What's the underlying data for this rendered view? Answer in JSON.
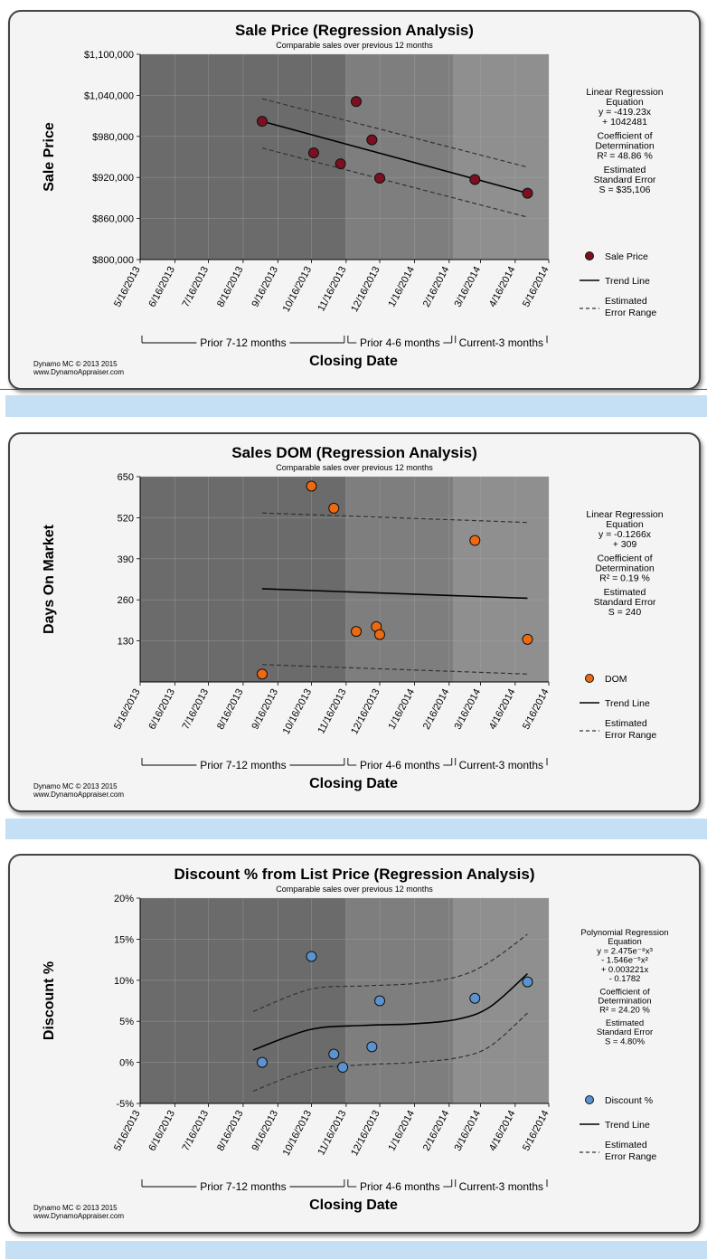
{
  "subtitle": "Comparable sales over previous 12 months",
  "xlabel": "Closing Date",
  "credit_line1": "Dynamo MC  © 2013 2015",
  "credit_line2": "www.DynamoAppraiser.com",
  "periods": [
    "Prior 7-12 months",
    "Prior 4-6 months",
    "Current-3 months"
  ],
  "x_ticks": [
    "5/16/2013",
    "6/16/2013",
    "7/16/2013",
    "8/16/2013",
    "9/16/2013",
    "10/16/2013",
    "11/16/2013",
    "12/16/2013",
    "1/16/2014",
    "2/16/2014",
    "3/16/2014",
    "4/16/2014",
    "5/16/2014"
  ],
  "legend_trend": "Trend Line",
  "legend_err1": "Estimated",
  "legend_err2": "Error Range",
  "colors": {
    "panel_bg": "#f4f4f4",
    "zone1": "#6b6b6b",
    "zone2": "#7e7e7e",
    "zone3": "#8f8f8f",
    "band": "#c5e0f4",
    "sale_price": "#7a1020",
    "dom": "#ee6a10",
    "discount": "#5b93cf"
  },
  "chart_data": [
    {
      "type": "scatter",
      "title": "Sale Price (Regression Analysis)",
      "ylabel": "Sale Price",
      "y_ticks": [
        "$800,000",
        "$860,000",
        "$920,000",
        "$980,000",
        "$1,040,000",
        "$1,100,000"
      ],
      "ylim": [
        800000,
        1100000
      ],
      "xlim": [
        "2013-05-16",
        "2014-05-16"
      ],
      "series": [
        {
          "name": "Sale Price",
          "x": [
            "2013-09-02",
            "2013-10-18",
            "2013-11-11",
            "2013-11-25",
            "2013-12-09",
            "2013-12-16",
            "2014-03-11",
            "2014-04-27"
          ],
          "y": [
            1002000,
            956000,
            940000,
            1031000,
            975000,
            919000,
            917000,
            897000
          ]
        }
      ],
      "trend": {
        "x": [
          "2013-09-02",
          "2014-04-27"
        ],
        "y": [
          1002000,
          897000
        ]
      },
      "error_upper": {
        "x": [
          "2013-09-02",
          "2014-04-27"
        ],
        "y": [
          1035000,
          935000
        ]
      },
      "error_lower": {
        "x": [
          "2013-09-02",
          "2014-04-27"
        ],
        "y": [
          963000,
          862000
        ]
      },
      "side_text": [
        "Linear Regression",
        "Equation",
        "y = -419.23x",
        "+ 1042481",
        "",
        "Coefficient of",
        "Determination",
        "R² = 48.86 %",
        "",
        "Estimated",
        "Standard Error",
        "S = $35,106"
      ]
    },
    {
      "type": "scatter",
      "title": "Sales DOM (Regression Analysis)",
      "ylabel": "Days On Market",
      "y_ticks": [
        "130",
        "260",
        "390",
        "520",
        "650"
      ],
      "ylim": [
        0,
        650
      ],
      "xlim": [
        "2013-05-16",
        "2014-05-16"
      ],
      "series": [
        {
          "name": "DOM",
          "x": [
            "2013-09-02",
            "2013-10-16",
            "2013-11-05",
            "2013-11-25",
            "2013-12-13",
            "2013-12-16",
            "2014-03-11",
            "2014-04-27"
          ],
          "y": [
            25,
            620,
            550,
            160,
            175,
            150,
            448,
            135
          ]
        }
      ],
      "trend": {
        "x": [
          "2013-09-02",
          "2014-04-27"
        ],
        "y": [
          295,
          265
        ]
      },
      "error_upper": {
        "x": [
          "2013-09-02",
          "2014-04-27"
        ],
        "y": [
          535,
          505
        ]
      },
      "error_lower": {
        "x": [
          "2013-09-02",
          "2014-04-27"
        ],
        "y": [
          55,
          25
        ]
      },
      "side_text": [
        "Linear Regression",
        "Equation",
        "y = -0.1266x",
        "+ 309",
        "",
        "Coefficient of",
        "Determination",
        "R² = 0.19 %",
        "",
        "Estimated",
        "Standard Error",
        "S = 240"
      ]
    },
    {
      "type": "scatter",
      "title": "Discount % from List Price (Regression Analysis)",
      "ylabel": "Discount %",
      "y_ticks": [
        "-5%",
        "0%",
        "5%",
        "10%",
        "15%",
        "20%"
      ],
      "ylim": [
        -5,
        20
      ],
      "xlim": [
        "2013-05-16",
        "2014-05-16"
      ],
      "series": [
        {
          "name": "Discount %",
          "x": [
            "2013-09-02",
            "2013-10-16",
            "2013-11-05",
            "2013-11-13",
            "2013-12-09",
            "2013-12-16",
            "2014-03-11",
            "2014-04-27"
          ],
          "y": [
            0,
            12.9,
            1.0,
            -0.6,
            1.9,
            7.5,
            7.8,
            9.8
          ]
        }
      ],
      "trend": {
        "x": [
          "2013-08-25",
          "2013-10-15",
          "2013-12-01",
          "2014-01-16",
          "2014-02-25",
          "2014-03-25",
          "2014-04-27"
        ],
        "y": [
          1.5,
          4.0,
          4.5,
          4.7,
          5.3,
          6.8,
          10.8
        ]
      },
      "error_upper": {
        "x": [
          "2013-08-25",
          "2013-10-15",
          "2013-12-01",
          "2014-01-16",
          "2014-02-25",
          "2014-03-25",
          "2014-04-27"
        ],
        "y": [
          6.2,
          8.9,
          9.3,
          9.6,
          10.5,
          12.3,
          15.6
        ]
      },
      "error_lower": {
        "x": [
          "2013-08-25",
          "2013-10-15",
          "2013-12-01",
          "2014-01-16",
          "2014-02-25",
          "2014-03-25",
          "2014-04-27"
        ],
        "y": [
          -3.5,
          -0.9,
          -0.3,
          0.0,
          0.6,
          2.0,
          6.0
        ]
      },
      "side_text": [
        "Polynomial Regression",
        "Equation",
        "y = 2.475e⁻⁸x³",
        "- 1.546e⁻⁵x²",
        "+ 0.003221x",
        "- 0.1782",
        "",
        "Coefficient of",
        "Determination",
        "R² = 24.20 %",
        "",
        "Estimated",
        "Standard Error",
        "S = 4.80%"
      ]
    }
  ]
}
